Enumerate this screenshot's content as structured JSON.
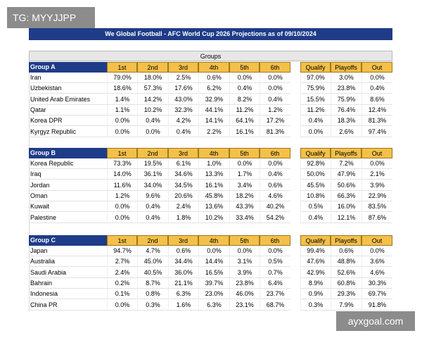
{
  "watermark": "TG: MYYJJPP",
  "title": "We Global Football - AFC World Cup 2026 Projections as of 09/10/2024",
  "groups_label": "Groups",
  "columns": [
    "1st",
    "2nd",
    "3rd",
    "4th",
    "5th",
    "6th",
    "Qualify",
    "Playoffs",
    "Out"
  ],
  "groups": [
    {
      "name": "Group A",
      "rows": [
        {
          "team": "Iran",
          "values": [
            "79.0%",
            "18.0%",
            "2.5%",
            "0.6%",
            "0.0%",
            "0.0%",
            "97.0%",
            "3.0%",
            "0.0%"
          ]
        },
        {
          "team": "Uzbekistan",
          "values": [
            "18.6%",
            "57.3%",
            "17.6%",
            "6.2%",
            "0.4%",
            "0.0%",
            "75.9%",
            "23.8%",
            "0.4%"
          ]
        },
        {
          "team": "United Arab Emirates",
          "values": [
            "1.4%",
            "14.2%",
            "43.0%",
            "32.9%",
            "8.2%",
            "0.4%",
            "15.5%",
            "75.9%",
            "8.6%"
          ]
        },
        {
          "team": "Qatar",
          "values": [
            "1.1%",
            "10.2%",
            "32.3%",
            "44.1%",
            "11.2%",
            "1.2%",
            "11.2%",
            "76.4%",
            "12.4%"
          ]
        },
        {
          "team": "Korea DPR",
          "values": [
            "0.0%",
            "0.4%",
            "4.2%",
            "14.1%",
            "64.1%",
            "17.2%",
            "0.4%",
            "18.3%",
            "81.3%"
          ]
        },
        {
          "team": "Kyrgyz Republic",
          "values": [
            "0.0%",
            "0.0%",
            "0.4%",
            "2.2%",
            "16.1%",
            "81.3%",
            "0.0%",
            "2.6%",
            "97.4%"
          ]
        }
      ]
    },
    {
      "name": "Group B",
      "rows": [
        {
          "team": "Korea Republic",
          "values": [
            "73.3%",
            "19.5%",
            "6.1%",
            "1.0%",
            "0.0%",
            "0.0%",
            "92.8%",
            "7.2%",
            "0.0%"
          ]
        },
        {
          "team": "Iraq",
          "values": [
            "14.0%",
            "36.1%",
            "34.6%",
            "13.3%",
            "1.7%",
            "0.4%",
            "50.0%",
            "47.9%",
            "2.1%"
          ]
        },
        {
          "team": "Jordan",
          "values": [
            "11.6%",
            "34.0%",
            "34.5%",
            "16.1%",
            "3.4%",
            "0.6%",
            "45.5%",
            "50.6%",
            "3.9%"
          ]
        },
        {
          "team": "Oman",
          "values": [
            "1.2%",
            "9.6%",
            "20.6%",
            "45.8%",
            "18.2%",
            "4.6%",
            "10.8%",
            "66.3%",
            "22.9%"
          ]
        },
        {
          "team": "Kuwait",
          "values": [
            "0.0%",
            "0.4%",
            "2.4%",
            "13.6%",
            "43.3%",
            "40.2%",
            "0.5%",
            "16.0%",
            "83.5%"
          ]
        },
        {
          "team": "Palestine",
          "values": [
            "0.0%",
            "0.4%",
            "1.8%",
            "10.2%",
            "33.4%",
            "54.2%",
            "0.4%",
            "12.1%",
            "87.6%"
          ]
        }
      ]
    },
    {
      "name": "Group C",
      "rows": [
        {
          "team": "Japan",
          "values": [
            "94.7%",
            "4.7%",
            "0.6%",
            "0.0%",
            "0.0%",
            "0.0%",
            "99.4%",
            "0.6%",
            "0.0%"
          ]
        },
        {
          "team": "Australia",
          "values": [
            "2.7%",
            "45.0%",
            "34.4%",
            "14.4%",
            "3.1%",
            "0.5%",
            "47.6%",
            "48.8%",
            "3.6%"
          ]
        },
        {
          "team": "Saudi Arabia",
          "values": [
            "2.4%",
            "40.5%",
            "36.0%",
            "16.5%",
            "3.9%",
            "0.7%",
            "42.9%",
            "52.6%",
            "4.6%"
          ]
        },
        {
          "team": "Bahrain",
          "values": [
            "0.2%",
            "8.7%",
            "21.1%",
            "39.7%",
            "23.8%",
            "6.4%",
            "8.9%",
            "60.8%",
            "30.3%"
          ]
        },
        {
          "team": "Indonesia",
          "values": [
            "0.1%",
            "0.8%",
            "6.3%",
            "23.0%",
            "46.0%",
            "23.7%",
            "0.9%",
            "29.3%",
            "69.7%"
          ]
        },
        {
          "team": "China PR",
          "values": [
            "0.0%",
            "0.3%",
            "1.6%",
            "6.3%",
            "23.1%",
            "68.7%",
            "0.3%",
            "7.9%",
            "91.8%"
          ]
        }
      ]
    }
  ],
  "footer_watermark": "ayxgoal.com"
}
